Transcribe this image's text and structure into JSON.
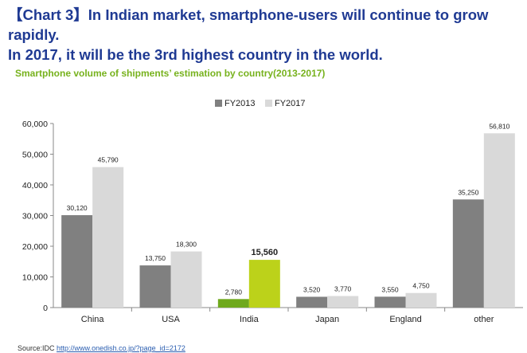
{
  "headline": {
    "line1": "【Chart 3】In Indian market, smartphone-users will continue to grow rapidly.",
    "line2": "In 2017, it will be the 3rd highest country in the world."
  },
  "source": {
    "label": "Source:IDC",
    "url": "http://www.onedish.co.jp/?page_id=2172"
  },
  "colors": {
    "fy2013": "#808080",
    "fy2017": "#d9d9d9",
    "india2013": "#6fa91d",
    "india2017": "#bcd21a",
    "headline": "#1f3a93",
    "subtitle": "#77b21d"
  },
  "chart_data": {
    "type": "bar",
    "title": "Smartphone volume of shipments’ estimation by country(2013-2017)",
    "xlabel": "",
    "ylabel": "",
    "ylim": [
      0,
      60000
    ],
    "yticks": [
      0,
      10000,
      20000,
      30000,
      40000,
      50000,
      60000
    ],
    "ytick_labels": [
      "0",
      "10,000",
      "20,000",
      "30,000",
      "40,000",
      "50,000",
      "60,000"
    ],
    "grid": false,
    "legend_position": "top-center",
    "categories": [
      "China",
      "USA",
      "India",
      "Japan",
      "England",
      "other"
    ],
    "series": [
      {
        "name": "FY2013",
        "values": [
          30120,
          13750,
          2780,
          3520,
          3550,
          35250
        ],
        "labels": [
          "30,120",
          "13,750",
          "2,780",
          "3,520",
          "3,550",
          "35,250"
        ]
      },
      {
        "name": "FY2017",
        "values": [
          45790,
          18300,
          15560,
          3770,
          4750,
          56810
        ],
        "labels": [
          "45,790",
          "18,300",
          "15,560",
          "3,770",
          "4,750",
          "56,810"
        ]
      }
    ],
    "highlight_category": "India"
  }
}
